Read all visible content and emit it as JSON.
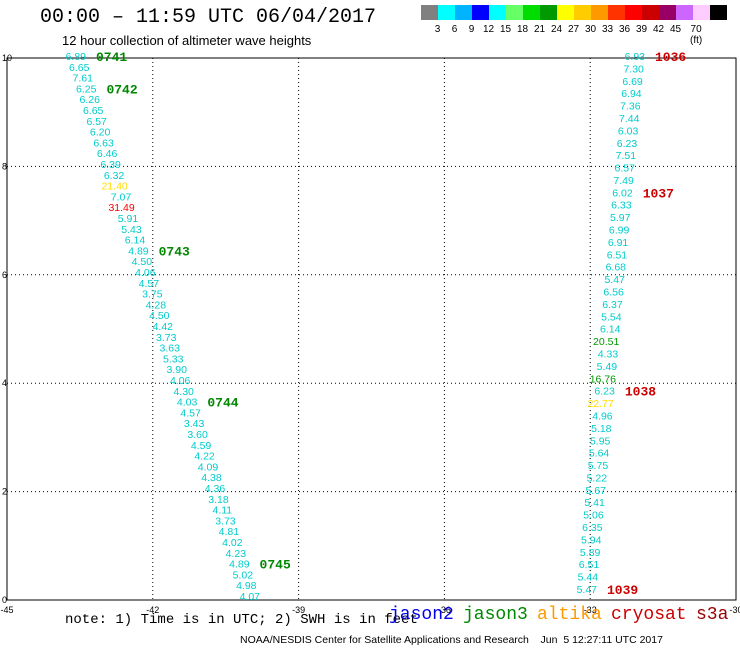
{
  "header": {
    "title": "00:00 – 11:59 UTC 06/04/2017",
    "subtitle": "12 hour collection of altimeter wave heights"
  },
  "scale": {
    "colors": [
      "#808080",
      "#00ffff",
      "#00b4ff",
      "#0000ff",
      "#00ffff",
      "#66ff66",
      "#00dd00",
      "#009900",
      "#ffff00",
      "#ffcc00",
      "#ff9900",
      "#ff3300",
      "#ff0000",
      "#cc0000",
      "#990066",
      "#cc66ff",
      "#ffccff",
      "#000000"
    ],
    "labels": [
      "3",
      "6",
      "9",
      "12",
      "15",
      "18",
      "21",
      "24",
      "27",
      "30",
      "33",
      "36",
      "39",
      "42",
      "45",
      "70 (ft)"
    ]
  },
  "axes": {
    "x_ticks": [
      "-45",
      "-42",
      "-39",
      "-36",
      "-33",
      "-30"
    ],
    "y_ticks": [
      "0",
      "2",
      "4",
      "6",
      "8",
      "10"
    ]
  },
  "left_track": [
    {
      "v": "6.89",
      "c": "#00cccc"
    },
    {
      "v": "6.65",
      "c": "#00cccc"
    },
    {
      "v": "7.61",
      "c": "#00cccc"
    },
    {
      "v": "6.25",
      "c": "#00cccc"
    },
    {
      "v": "6.26",
      "c": "#00cccc"
    },
    {
      "v": "6.65",
      "c": "#00cccc"
    },
    {
      "v": "6.57",
      "c": "#00cccc"
    },
    {
      "v": "6.20",
      "c": "#00cccc"
    },
    {
      "v": "6.63",
      "c": "#00cccc"
    },
    {
      "v": "6.46",
      "c": "#00cccc"
    },
    {
      "v": "6.39",
      "c": "#00cccc"
    },
    {
      "v": "6.32",
      "c": "#00cccc"
    },
    {
      "v": "21.40",
      "c": "#ffdd00"
    },
    {
      "v": "7.07",
      "c": "#00cccc"
    },
    {
      "v": "31.49",
      "c": "#ff0000"
    },
    {
      "v": "5.91",
      "c": "#00cccc"
    },
    {
      "v": "5.43",
      "c": "#00cccc"
    },
    {
      "v": "6.14",
      "c": "#00cccc"
    },
    {
      "v": "4.89",
      "c": "#00cccc"
    },
    {
      "v": "4.50",
      "c": "#00cccc"
    },
    {
      "v": "4.06",
      "c": "#00cccc"
    },
    {
      "v": "4.57",
      "c": "#00cccc"
    },
    {
      "v": "3.75",
      "c": "#00cccc"
    },
    {
      "v": "4.28",
      "c": "#00cccc"
    },
    {
      "v": "4.50",
      "c": "#00cccc"
    },
    {
      "v": "4.42",
      "c": "#00cccc"
    },
    {
      "v": "3.73",
      "c": "#00cccc"
    },
    {
      "v": "3.63",
      "c": "#00cccc"
    },
    {
      "v": "5.33",
      "c": "#00cccc"
    },
    {
      "v": "3.90",
      "c": "#00cccc"
    },
    {
      "v": "4.06",
      "c": "#00cccc"
    },
    {
      "v": "4.30",
      "c": "#00cccc"
    },
    {
      "v": "4.03",
      "c": "#00cccc"
    },
    {
      "v": "4.57",
      "c": "#00cccc"
    },
    {
      "v": "3.43",
      "c": "#00cccc"
    },
    {
      "v": "3.60",
      "c": "#00cccc"
    },
    {
      "v": "4.59",
      "c": "#00cccc"
    },
    {
      "v": "4.22",
      "c": "#00cccc"
    },
    {
      "v": "4.09",
      "c": "#00cccc"
    },
    {
      "v": "4.38",
      "c": "#00cccc"
    },
    {
      "v": "4.36",
      "c": "#00cccc"
    },
    {
      "v": "3.18",
      "c": "#00cccc"
    },
    {
      "v": "4.11",
      "c": "#00cccc"
    },
    {
      "v": "3.73",
      "c": "#00cccc"
    },
    {
      "v": "4.81",
      "c": "#00cccc"
    },
    {
      "v": "4.02",
      "c": "#00cccc"
    },
    {
      "v": "4.23",
      "c": "#00cccc"
    },
    {
      "v": "4.89",
      "c": "#00cccc"
    },
    {
      "v": "5.02",
      "c": "#00cccc"
    },
    {
      "v": "4.98",
      "c": "#00cccc"
    },
    {
      "v": "4.07",
      "c": "#00cccc"
    }
  ],
  "right_track": [
    {
      "v": "6.93",
      "c": "#00cccc"
    },
    {
      "v": "7.30",
      "c": "#00cccc"
    },
    {
      "v": "6.69",
      "c": "#00cccc"
    },
    {
      "v": "6.94",
      "c": "#00cccc"
    },
    {
      "v": "7.36",
      "c": "#00cccc"
    },
    {
      "v": "7.44",
      "c": "#00cccc"
    },
    {
      "v": "6.03",
      "c": "#00cccc"
    },
    {
      "v": "6.23",
      "c": "#00cccc"
    },
    {
      "v": "7.51",
      "c": "#00cccc"
    },
    {
      "v": "6.57",
      "c": "#00cccc"
    },
    {
      "v": "7.49",
      "c": "#00cccc"
    },
    {
      "v": "6.02",
      "c": "#00cccc"
    },
    {
      "v": "6.33",
      "c": "#00cccc"
    },
    {
      "v": "5.97",
      "c": "#00cccc"
    },
    {
      "v": "6.99",
      "c": "#00cccc"
    },
    {
      "v": "6.91",
      "c": "#00cccc"
    },
    {
      "v": "6.51",
      "c": "#00cccc"
    },
    {
      "v": "6.68",
      "c": "#00cccc"
    },
    {
      "v": "5.47",
      "c": "#00cccc"
    },
    {
      "v": "6.56",
      "c": "#00cccc"
    },
    {
      "v": "6.37",
      "c": "#00cccc"
    },
    {
      "v": "5.54",
      "c": "#00cccc"
    },
    {
      "v": "6.14",
      "c": "#00cccc"
    },
    {
      "v": "20.51",
      "c": "#009900"
    },
    {
      "v": "4.33",
      "c": "#00cccc"
    },
    {
      "v": "5.49",
      "c": "#00cccc"
    },
    {
      "v": "16.76",
      "c": "#009900"
    },
    {
      "v": "6.23",
      "c": "#00cccc"
    },
    {
      "v": "22.77",
      "c": "#ffdd00"
    },
    {
      "v": "4.96",
      "c": "#00cccc"
    },
    {
      "v": "5.18",
      "c": "#00cccc"
    },
    {
      "v": "5.95",
      "c": "#00cccc"
    },
    {
      "v": "5.64",
      "c": "#00cccc"
    },
    {
      "v": "5.75",
      "c": "#00cccc"
    },
    {
      "v": "5.22",
      "c": "#00cccc"
    },
    {
      "v": "5.67",
      "c": "#00cccc"
    },
    {
      "v": "5.41",
      "c": "#00cccc"
    },
    {
      "v": "5.06",
      "c": "#00cccc"
    },
    {
      "v": "6.35",
      "c": "#00cccc"
    },
    {
      "v": "5.94",
      "c": "#00cccc"
    },
    {
      "v": "5.89",
      "c": "#00cccc"
    },
    {
      "v": "6.51",
      "c": "#00cccc"
    },
    {
      "v": "5.44",
      "c": "#00cccc"
    },
    {
      "v": "5.47",
      "c": "#00cccc"
    }
  ],
  "time_labels": [
    {
      "t": "0741",
      "c": "#008800",
      "track": "left",
      "i": 0
    },
    {
      "t": "0742",
      "c": "#008800",
      "track": "left",
      "i": 3
    },
    {
      "t": "0743",
      "c": "#008800",
      "track": "left",
      "i": 18
    },
    {
      "t": "0744",
      "c": "#008800",
      "track": "left",
      "i": 32
    },
    {
      "t": "0745",
      "c": "#008800",
      "track": "left",
      "i": 47
    },
    {
      "t": "1036",
      "c": "#cc0000",
      "track": "right",
      "i": 0
    },
    {
      "t": "1037",
      "c": "#cc0000",
      "track": "right",
      "i": 11
    },
    {
      "t": "1038",
      "c": "#cc0000",
      "track": "right",
      "i": 27
    },
    {
      "t": "1039",
      "c": "#cc0000",
      "track": "right",
      "i": 43
    }
  ],
  "footer": {
    "note": "note: 1) Time is in UTC; 2) SWH is in feet",
    "sats": [
      {
        "name": "jason2",
        "color": "#0000ee"
      },
      {
        "name": "jason3",
        "color": "#008800"
      },
      {
        "name": "altika",
        "color": "#ff9900"
      },
      {
        "name": "cryosat",
        "color": "#cc0000"
      },
      {
        "name": "s3a",
        "color": "#990000"
      }
    ],
    "credit": "NOAA/NESDIS Center for Satellite Applications and Research    Jun  5 12:27:11 UTC 2017"
  }
}
